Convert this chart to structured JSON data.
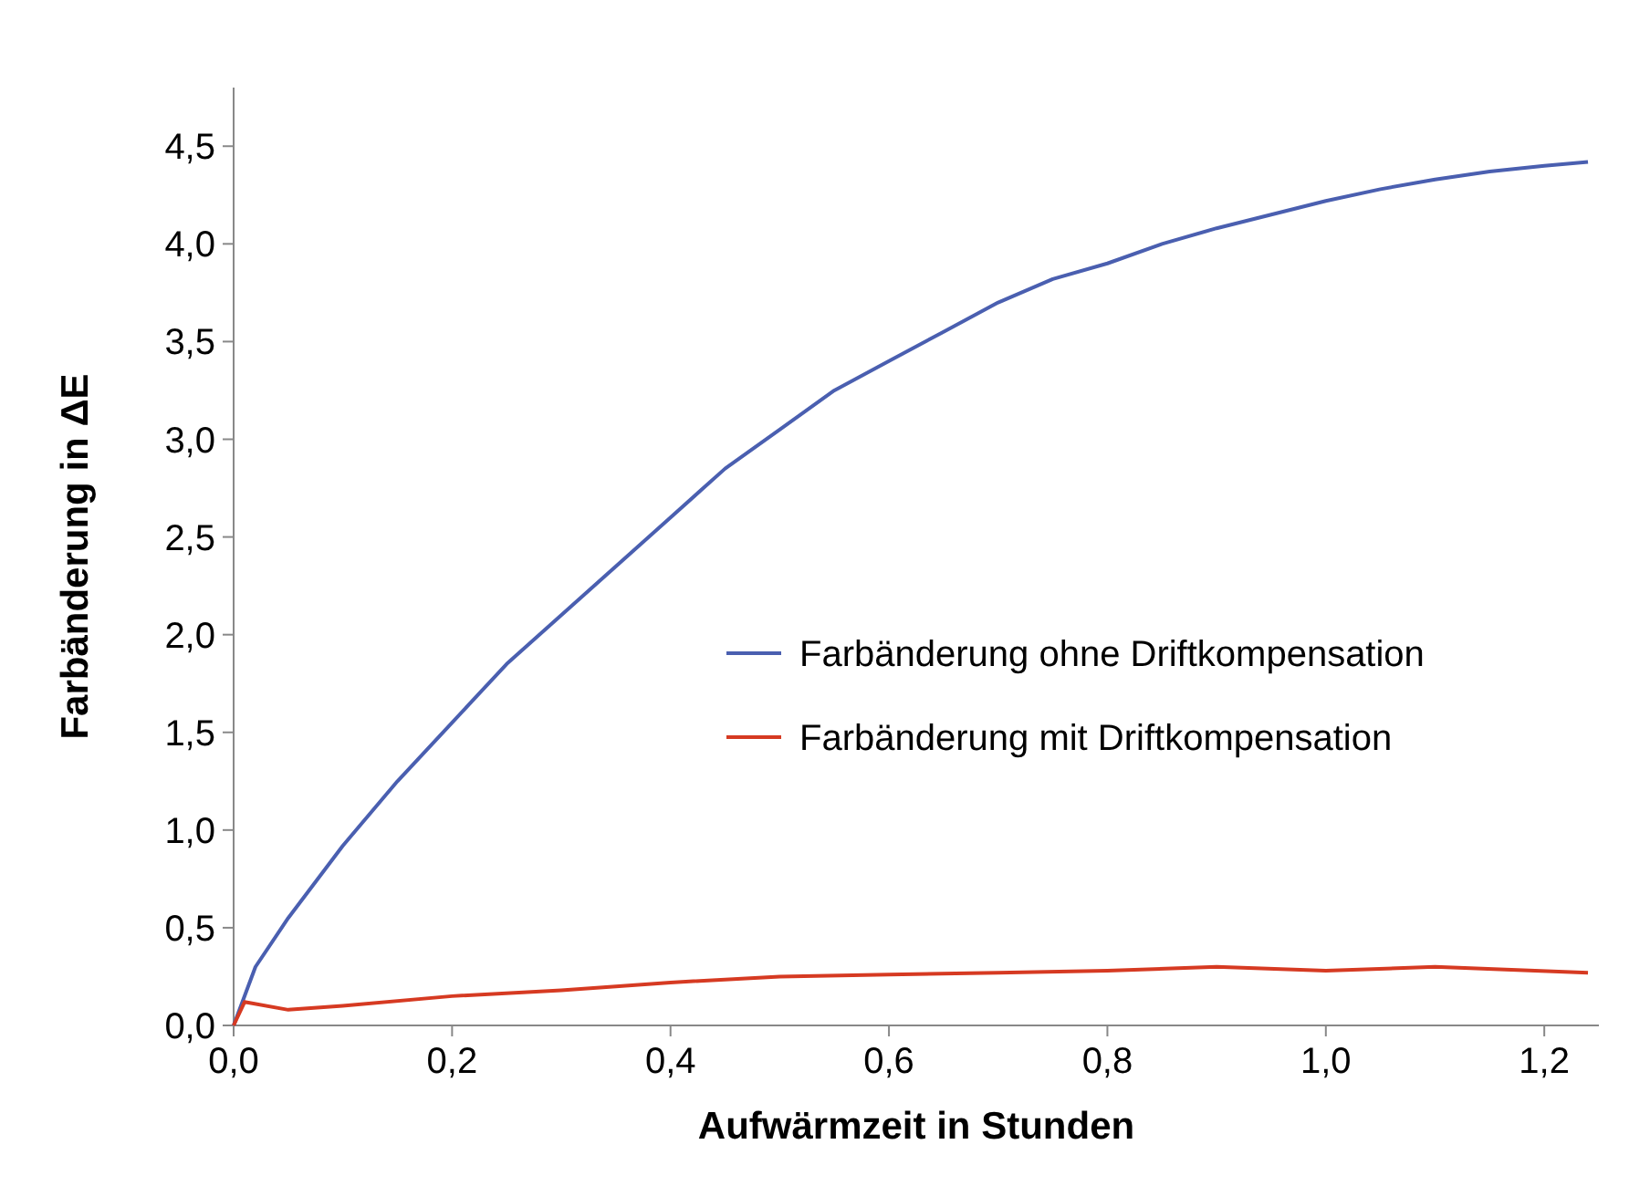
{
  "chart_data": {
    "type": "line",
    "xlabel": "Aufwärmzeit in Stunden",
    "ylabel": "Farbänderung in ΔE",
    "xlim": [
      0,
      1.25
    ],
    "xticks": [
      {
        "value": 0,
        "label": "0,0"
      },
      {
        "value": 0.2,
        "label": "0,2"
      },
      {
        "value": 0.4,
        "label": "0,4"
      },
      {
        "value": 0.6,
        "label": "0,6"
      },
      {
        "value": 0.8,
        "label": "0,8"
      },
      {
        "value": 1,
        "label": "1,0"
      },
      {
        "value": 1.2,
        "label": "1,2"
      }
    ],
    "ylim": [
      0,
      4.8
    ],
    "yticks": [
      {
        "value": 0,
        "label": "0,0"
      },
      {
        "value": 0.5,
        "label": "0,5"
      },
      {
        "value": 1,
        "label": "1,0"
      },
      {
        "value": 1.5,
        "label": "1,5"
      },
      {
        "value": 2,
        "label": "2,0"
      },
      {
        "value": 2.5,
        "label": "2,5"
      },
      {
        "value": 3,
        "label": "3,0"
      },
      {
        "value": 3.5,
        "label": "3,5"
      },
      {
        "value": 4,
        "label": "4,0"
      },
      {
        "value": 4.5,
        "label": "4,5"
      }
    ],
    "grid": false,
    "legend": "right",
    "marker": "none",
    "line_style": "solid",
    "series": [
      {
        "name": "Farbänderung ohne Driftkompensation",
        "color": "#4a5fb0",
        "x": [
          0,
          0.02,
          0.05,
          0.1,
          0.15,
          0.2,
          0.25,
          0.3,
          0.35,
          0.4,
          0.45,
          0.5,
          0.55,
          0.6,
          0.65,
          0.7,
          0.75,
          0.8,
          0.85,
          0.9,
          0.95,
          1,
          1.05,
          1.1,
          1.15,
          1.2,
          1.24
        ],
        "values": [
          0,
          0.3,
          0.55,
          0.92,
          1.25,
          1.55,
          1.85,
          2.1,
          2.35,
          2.6,
          2.85,
          3.05,
          3.25,
          3.4,
          3.55,
          3.7,
          3.82,
          3.9,
          4,
          4.08,
          4.15,
          4.22,
          4.28,
          4.33,
          4.37,
          4.4,
          4.42
        ]
      },
      {
        "name": "Farbänderung mit Driftkompensation",
        "color": "#d63a22",
        "x": [
          0,
          0.01,
          0.05,
          0.1,
          0.2,
          0.3,
          0.4,
          0.5,
          0.6,
          0.7,
          0.8,
          0.9,
          1,
          1.1,
          1.24
        ],
        "values": [
          0,
          0.12,
          0.08,
          0.1,
          0.15,
          0.18,
          0.22,
          0.25,
          0.26,
          0.27,
          0.28,
          0.3,
          0.28,
          0.3,
          0.27
        ]
      }
    ]
  }
}
